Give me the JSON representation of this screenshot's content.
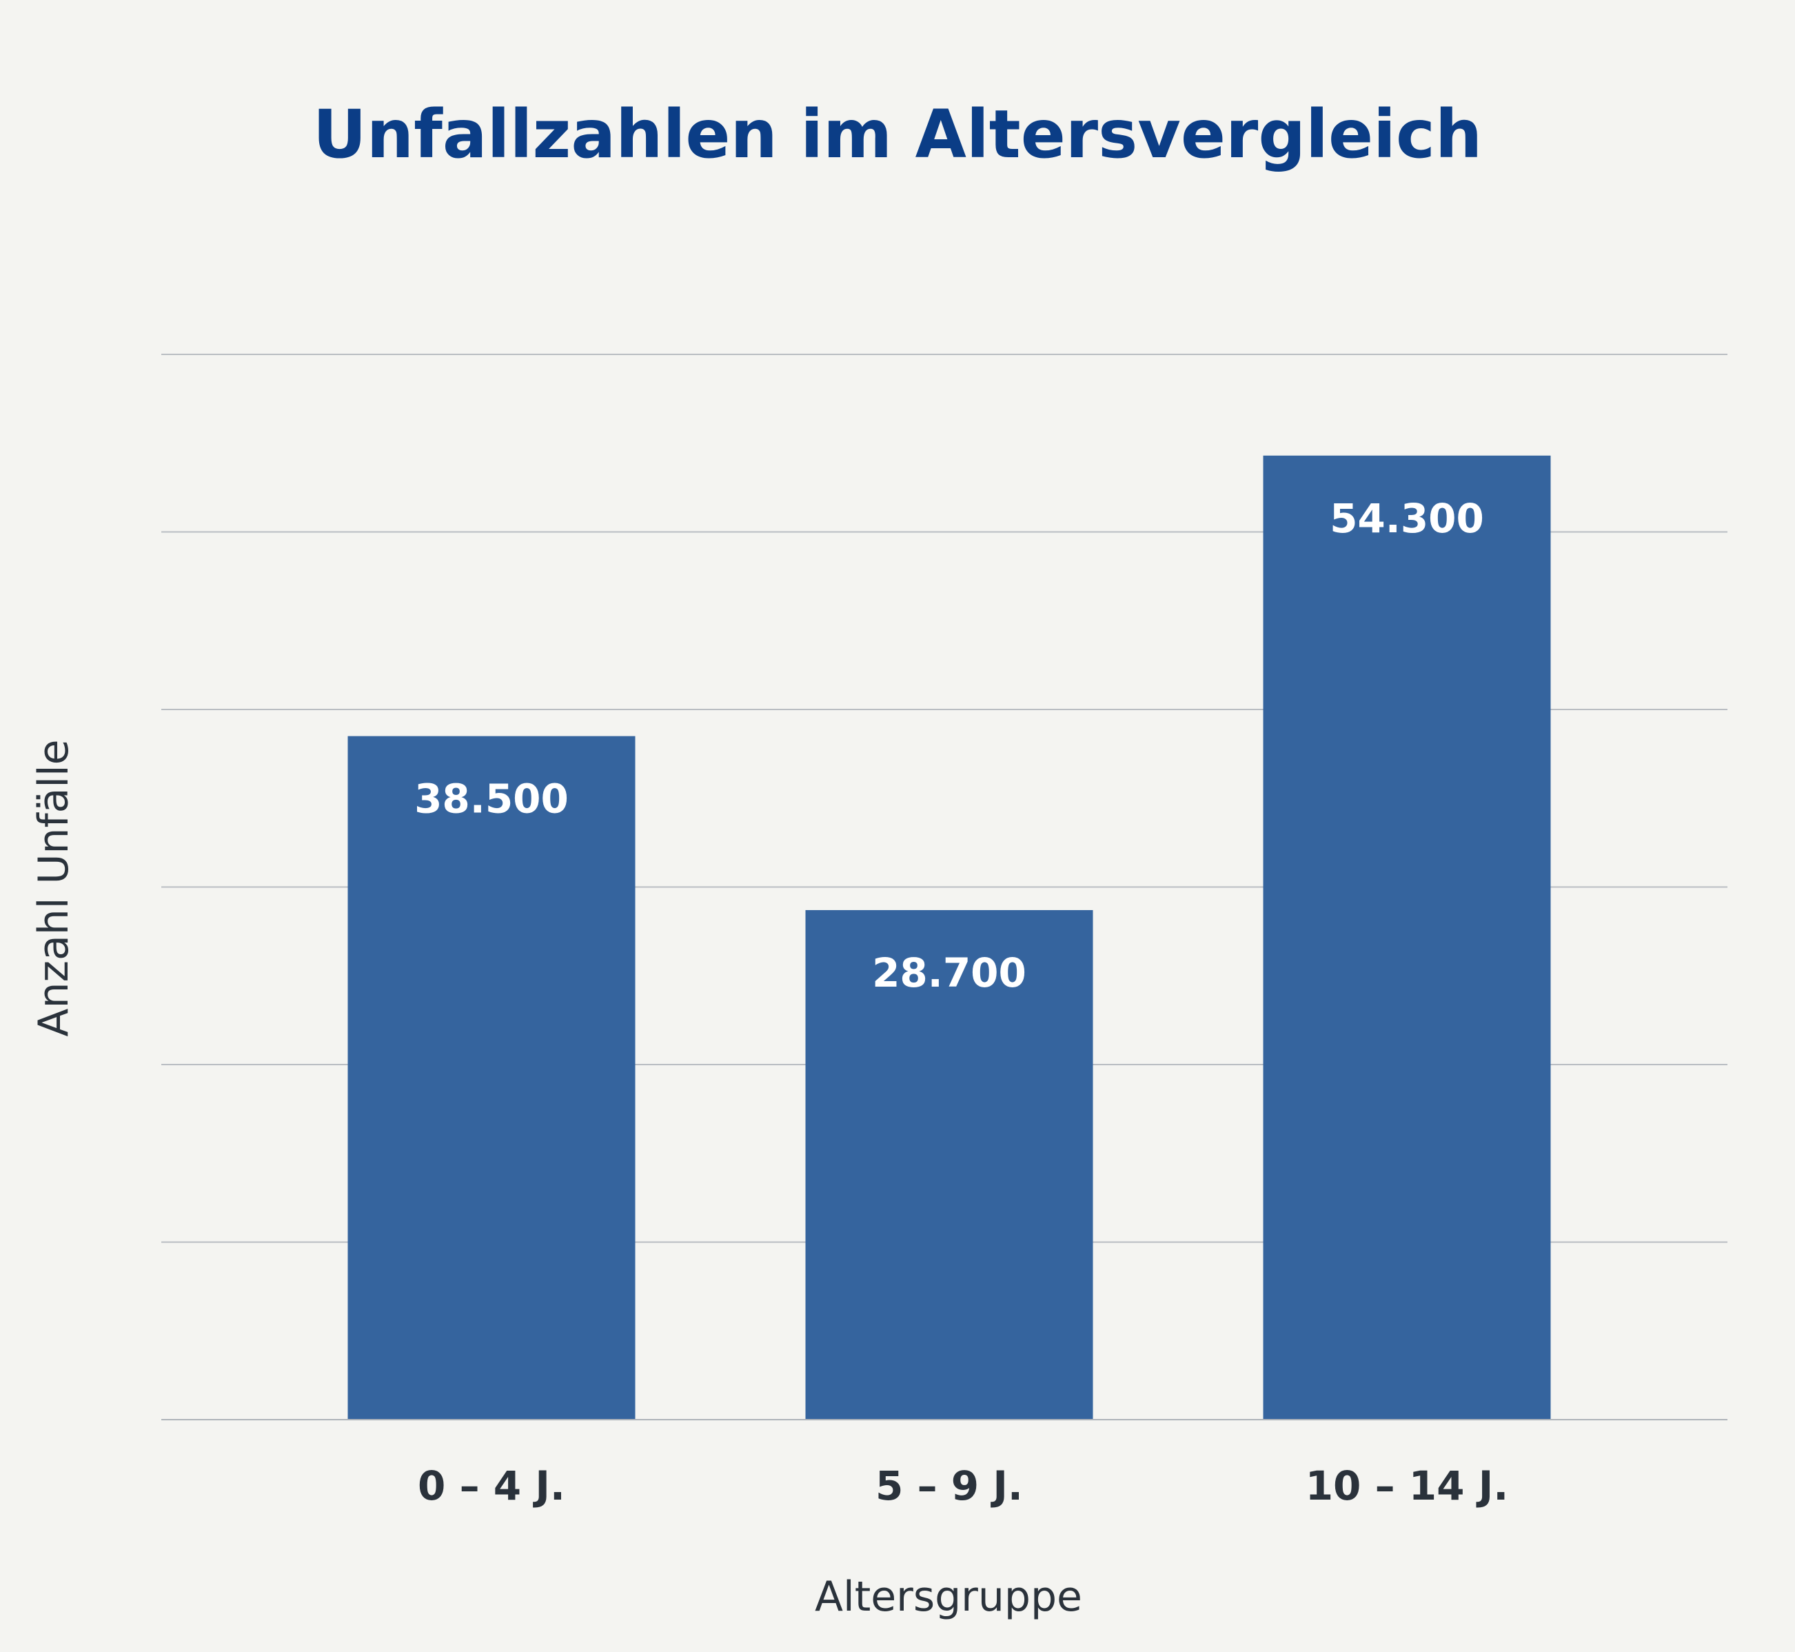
{
  "chart_data": {
    "type": "bar",
    "title": "Unfallzahlen im Altersvergleich",
    "xlabel": "Altersgruppe",
    "ylabel": "Anzahl Unfälle",
    "categories": [
      "0 – 4 J.",
      "5 – 9 J.",
      "10 – 14 J."
    ],
    "values": [
      38500,
      28700,
      54300
    ],
    "value_labels": [
      "38.500",
      "28.700",
      "54.300"
    ],
    "ylim": [
      0,
      60000
    ],
    "grid": true,
    "colors": {
      "bar": "#35649e",
      "title": "#0b3d86",
      "background": "#f4f4f1"
    }
  }
}
